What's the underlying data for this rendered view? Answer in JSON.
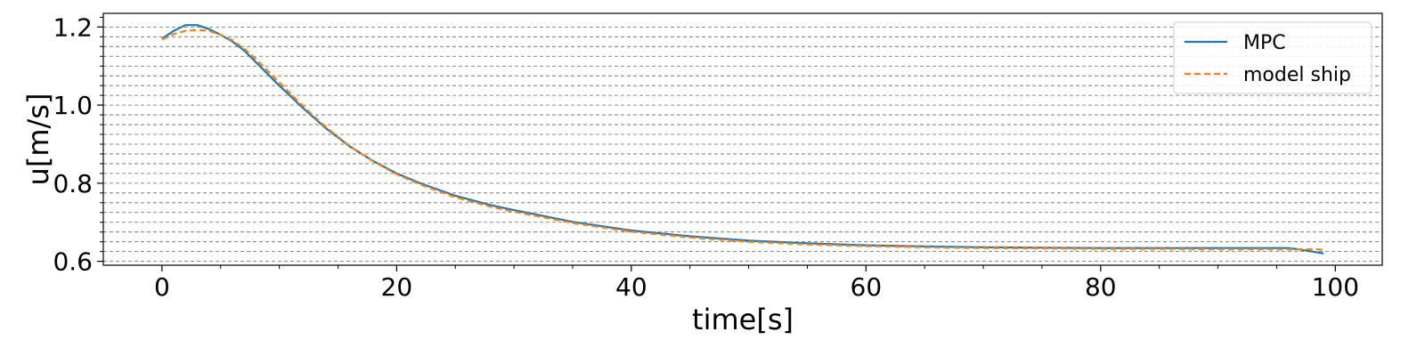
{
  "chart_data": {
    "type": "line",
    "title": "",
    "xlabel": "time[s]",
    "ylabel": "u[m/s]",
    "xlim": [
      -5,
      104
    ],
    "ylim": [
      0.59,
      1.235
    ],
    "xticks": [
      0,
      20,
      40,
      60,
      80,
      100
    ],
    "xtick_labels": [
      "0",
      "20",
      "40",
      "60",
      "80",
      "100"
    ],
    "yticks": [
      0.6,
      0.8,
      1.0,
      1.2
    ],
    "ytick_labels": [
      "0.6",
      "0.8",
      "1.0",
      "1.2"
    ],
    "grid": "horizontal dashed",
    "legend_position": "top-right",
    "x": [
      0,
      1,
      2,
      3,
      4,
      5,
      6,
      7,
      8,
      10,
      12,
      14,
      16,
      18,
      20,
      22,
      25,
      28,
      30,
      35,
      40,
      45,
      50,
      55,
      60,
      65,
      70,
      75,
      80,
      85,
      90,
      95,
      96,
      97,
      98,
      99
    ],
    "series": [
      {
        "name": "MPC",
        "color": "#1f77b4",
        "style": "solid",
        "values": [
          1.17,
          1.19,
          1.205,
          1.205,
          1.195,
          1.18,
          1.163,
          1.14,
          1.11,
          1.05,
          0.993,
          0.94,
          0.894,
          0.857,
          0.825,
          0.8,
          0.768,
          0.744,
          0.731,
          0.701,
          0.679,
          0.664,
          0.653,
          0.646,
          0.641,
          0.638,
          0.636,
          0.635,
          0.634,
          0.634,
          0.634,
          0.634,
          0.634,
          0.63,
          0.625,
          0.62
        ]
      },
      {
        "name": "model ship",
        "color": "#ff7f0e",
        "style": "dashed",
        "values": [
          1.168,
          1.182,
          1.19,
          1.193,
          1.19,
          1.18,
          1.166,
          1.145,
          1.118,
          1.058,
          0.998,
          0.943,
          0.895,
          0.856,
          0.823,
          0.797,
          0.764,
          0.74,
          0.727,
          0.698,
          0.676,
          0.661,
          0.65,
          0.643,
          0.639,
          0.636,
          0.634,
          0.633,
          0.632,
          0.632,
          0.631,
          0.631,
          0.631,
          0.631,
          0.631,
          0.63
        ]
      }
    ]
  }
}
